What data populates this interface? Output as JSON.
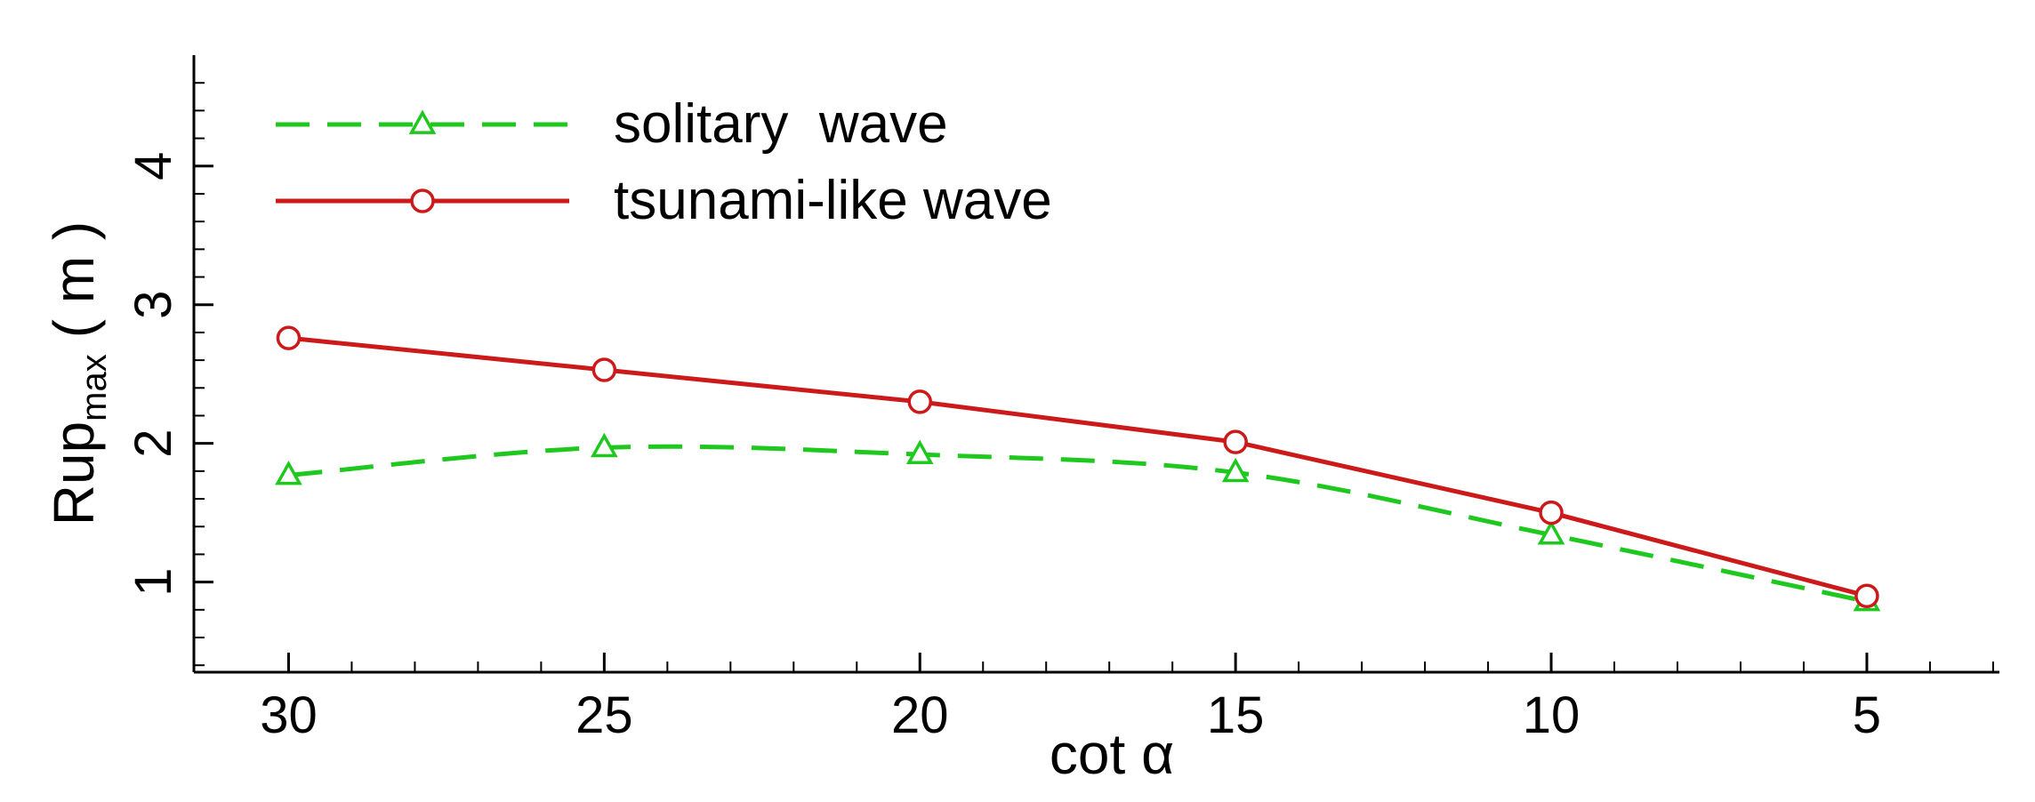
{
  "chart_data": {
    "type": "line",
    "xlabel": "cot α",
    "ylabel_main": "Rup",
    "ylabel_sub": "max",
    "ylabel_unit": "( m )",
    "x_reversed": true,
    "xlim": [
      31.5,
      2.9
    ],
    "ylim": [
      0.35,
      4.8
    ],
    "x_ticks": [
      30,
      25,
      20,
      15,
      10,
      5
    ],
    "x_tick_labels": [
      "30",
      "25",
      "20",
      "15",
      "10",
      "5"
    ],
    "x_minor_ticks": [
      29,
      28,
      27,
      26,
      24,
      23,
      22,
      21,
      19,
      18,
      17,
      16,
      14,
      13,
      12,
      11,
      9,
      8,
      7,
      6,
      4,
      3
    ],
    "y_ticks": [
      1,
      2,
      3,
      4
    ],
    "y_tick_labels": [
      "1",
      "2",
      "3",
      "4"
    ],
    "y_minor_ticks": [
      0.4,
      0.6,
      0.8,
      1.2,
      1.4,
      1.6,
      1.8,
      2.2,
      2.4,
      2.6,
      2.8,
      3.2,
      3.4,
      3.6,
      3.8,
      4.2,
      4.4,
      4.6
    ],
    "legend_position": "top-left",
    "grid": false,
    "series": [
      {
        "name": "solitary  wave",
        "color": "#1ec81e",
        "line_style": "dashed",
        "marker": "triangle",
        "smooth": true,
        "x": [
          30,
          25,
          20,
          15,
          10,
          5
        ],
        "y": [
          1.77,
          1.97,
          1.92,
          1.79,
          1.34,
          0.86
        ]
      },
      {
        "name": "tsunami-like wave",
        "color": "#cc1a1a",
        "line_style": "solid",
        "marker": "circle",
        "smooth": false,
        "x": [
          30,
          25,
          20,
          15,
          10,
          5
        ],
        "y": [
          2.76,
          2.53,
          2.3,
          2.01,
          1.5,
          0.9
        ]
      }
    ]
  }
}
